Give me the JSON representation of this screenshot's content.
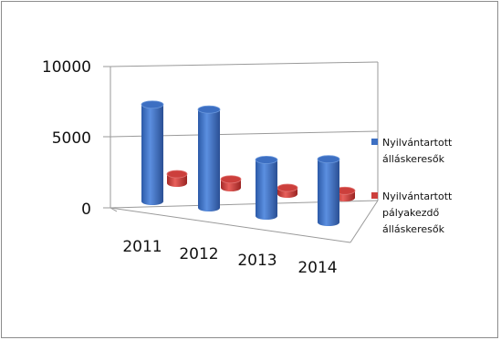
{
  "chart_data": {
    "type": "bar",
    "style": "3d-cylinder",
    "categories": [
      "2011",
      "2012",
      "2013",
      "2014"
    ],
    "series": [
      {
        "name": "Nyilvántartott álláskeresők",
        "legend_lines": [
          "Nyilvántartott",
          "álláskeresők"
        ],
        "color": "#3d6fc2",
        "values": [
          6900,
          7000,
          4000,
          4500
        ]
      },
      {
        "name": "Nyilvántartott pályakezdő álláskeresők",
        "legend_lines": [
          "Nyilvántartott",
          "pályakezdő",
          "álláskeresők"
        ],
        "color": "#cc3f3c",
        "values": [
          650,
          600,
          450,
          500
        ]
      }
    ],
    "y_ticks": [
      "10000",
      "5000",
      "0"
    ],
    "ylim": [
      0,
      10000
    ],
    "grid": true,
    "legend_position": "right"
  }
}
